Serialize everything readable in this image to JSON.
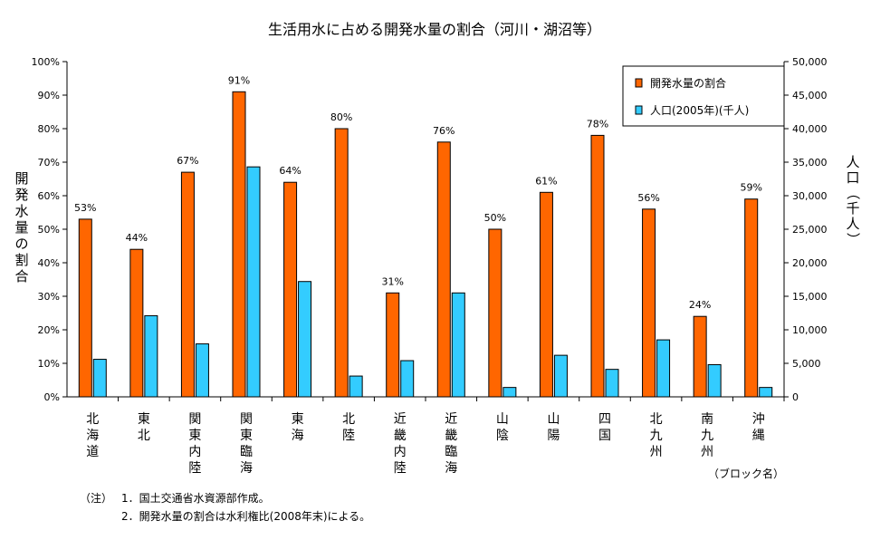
{
  "chart_data": {
    "type": "bar",
    "title": "生活用水に占める開発水量の割合（河川・湖沼等）",
    "categories": [
      "北海道",
      "東北",
      "関東内陸",
      "関東臨海",
      "東海",
      "北陸",
      "近畿内陸",
      "近畿臨海",
      "山陰",
      "山陽",
      "四国",
      "北九州",
      "南九州",
      "沖縄"
    ],
    "series": [
      {
        "name": "開発水量の割合",
        "axis": "left",
        "color": "#FF6600",
        "values": [
          53,
          44,
          67,
          91,
          64,
          80,
          31,
          76,
          50,
          61,
          78,
          56,
          24,
          59
        ],
        "labels": [
          "53%",
          "44%",
          "67%",
          "91%",
          "64%",
          "80%",
          "31%",
          "76%",
          "50%",
          "61%",
          "78%",
          "56%",
          "24%",
          "59%"
        ]
      },
      {
        "name": "人口(2005年)(千人)",
        "axis": "right",
        "color": "#33CCFF",
        "values": [
          5600,
          12100,
          7900,
          34300,
          17200,
          3100,
          5400,
          15500,
          1400,
          6200,
          4100,
          8500,
          4800,
          1400
        ]
      }
    ],
    "ylabel_left": "開発水量の割合",
    "ylabel_right": "人口（千人）",
    "ylim_left": [
      0,
      100
    ],
    "ylim_right": [
      0,
      50000
    ],
    "yticks_left": [
      "0%",
      "10%",
      "20%",
      "30%",
      "40%",
      "50%",
      "60%",
      "70%",
      "80%",
      "90%",
      "100%"
    ],
    "yticks_right": [
      "0",
      "5,000",
      "10,000",
      "15,000",
      "20,000",
      "25,000",
      "30,000",
      "35,000",
      "40,000",
      "45,000",
      "50,000"
    ],
    "xlabel_note": "（ブロック名）",
    "grid": false,
    "legend_position": "top-right"
  },
  "notes": {
    "prefix": "（注）",
    "line1": "1．国土交通省水資源部作成。",
    "line2": "2．開発水量の割合は水利権比(2008年末)による。"
  }
}
